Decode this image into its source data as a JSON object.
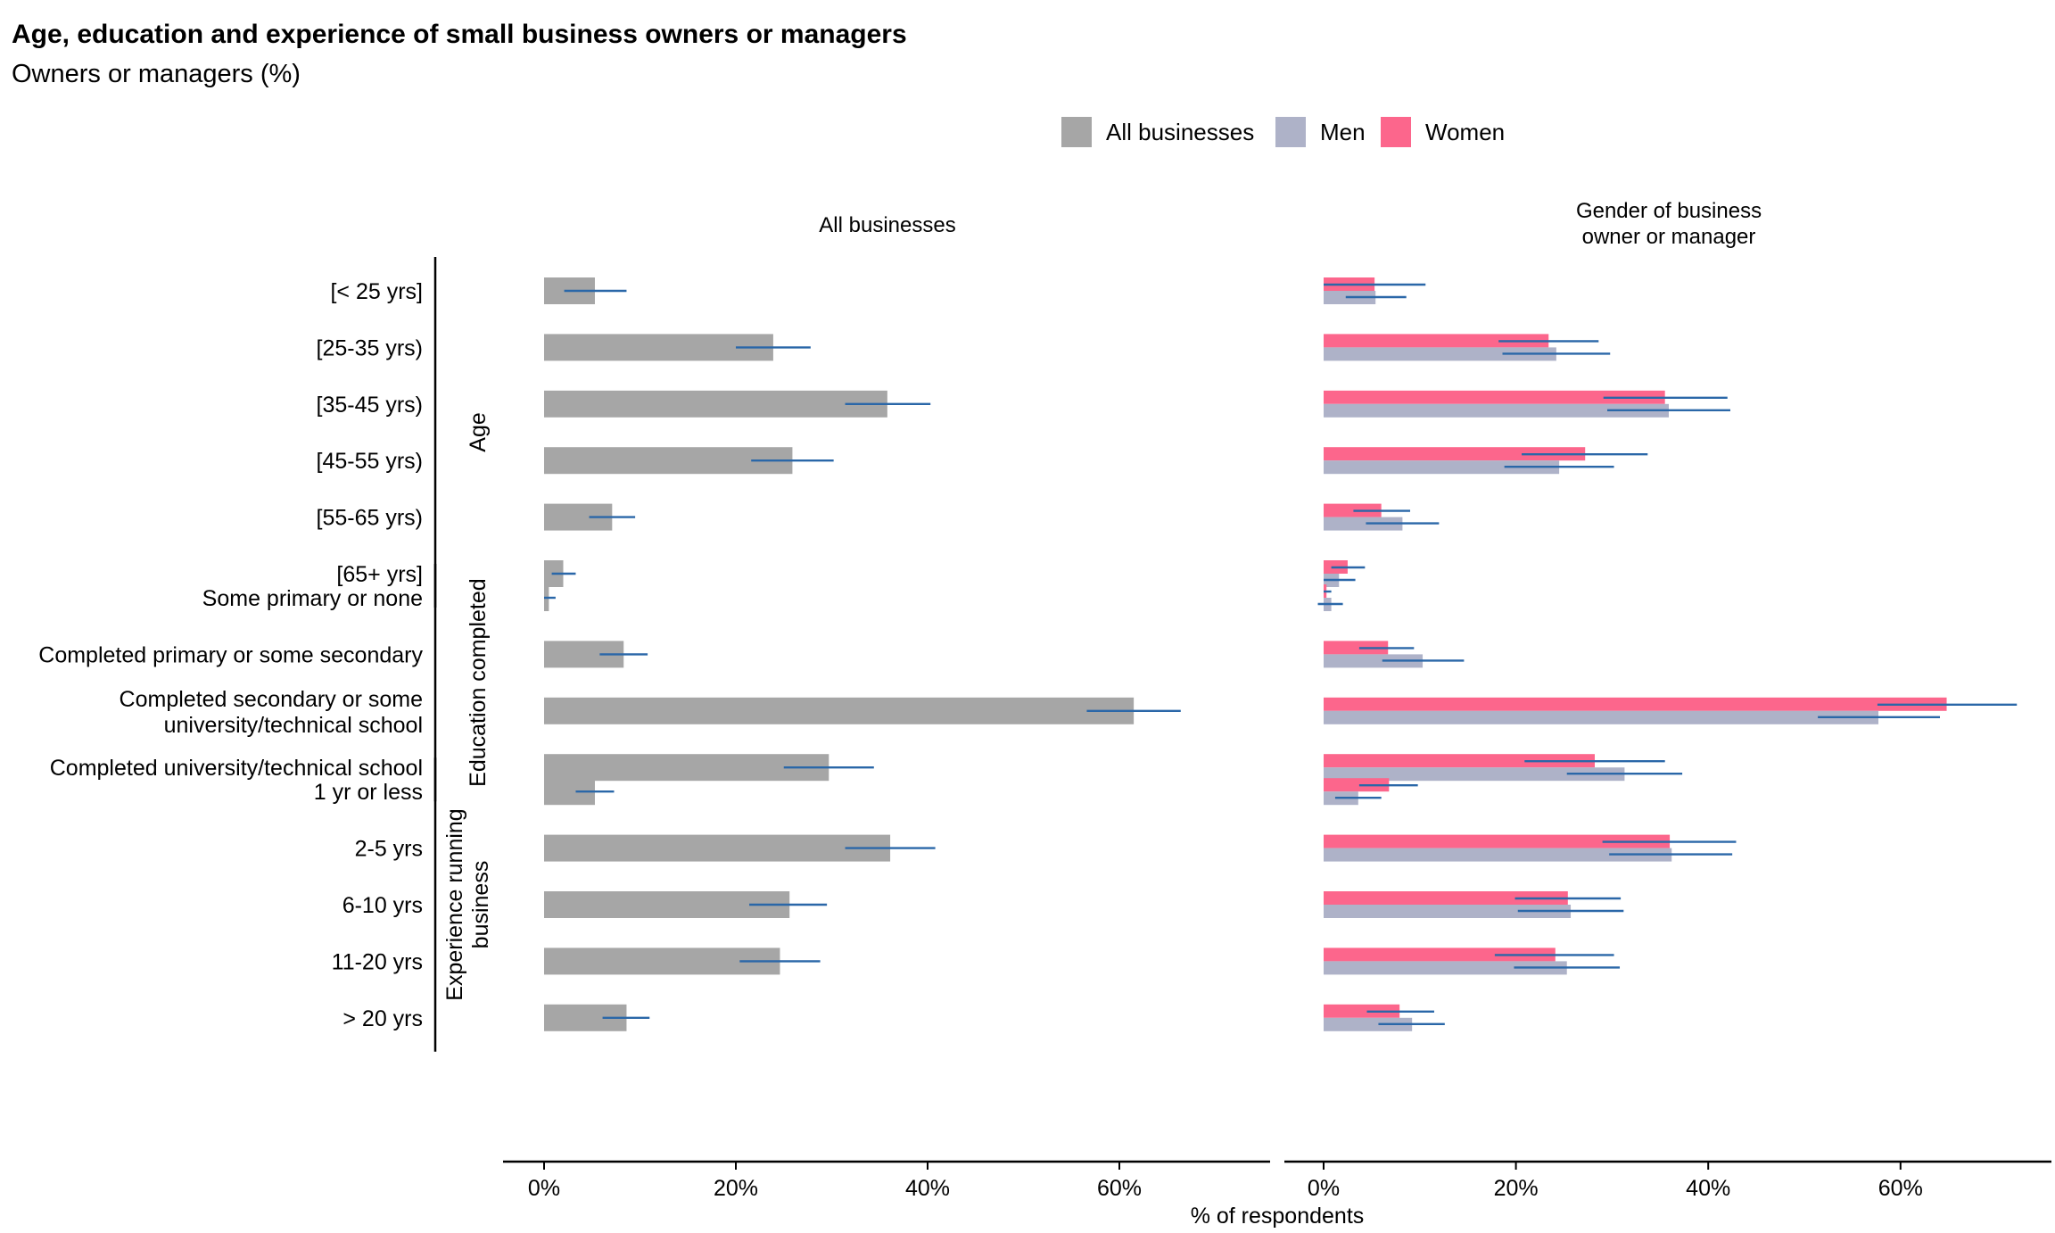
{
  "title": "Age, education and experience of small business owners or managers",
  "subtitle": "Owners or managers (%)",
  "legend": [
    {
      "label": "All businesses",
      "color": "#a6a6a6"
    },
    {
      "label": "Men",
      "color": "#aeb2c8"
    },
    {
      "label": "Women",
      "color": "#fc668c"
    }
  ],
  "colors": {
    "all": "#a6a6a6",
    "men": "#aeb2c8",
    "women": "#fc668c",
    "error_bar": "#2a67a8"
  },
  "chart_data": {
    "type": "bar",
    "orientation": "horizontal",
    "facets": [
      "All businesses",
      "Gender of business\nowner or manager"
    ],
    "xlabel": "% of respondents",
    "xlim": [
      -4,
      75
    ],
    "xticks": [
      0,
      20,
      40,
      60
    ],
    "xtick_labels": [
      "0%",
      "20%",
      "40%",
      "60%"
    ],
    "grid": false,
    "legend_position": "top",
    "groups": [
      {
        "name": "Age",
        "rows": [
          {
            "label": "[< 25 yrs]",
            "all": 5.3,
            "all_ci": [
              2.1,
              8.6
            ],
            "men": 5.4,
            "men_ci": [
              2.3,
              8.6
            ],
            "women": 5.3,
            "women_ci": [
              0.0,
              10.6
            ]
          },
          {
            "label": "[25-35 yrs)",
            "all": 23.9,
            "all_ci": [
              20.0,
              27.8
            ],
            "men": 24.2,
            "men_ci": [
              18.6,
              29.8
            ],
            "women": 23.4,
            "women_ci": [
              18.2,
              28.6
            ]
          },
          {
            "label": "[35-45 yrs)",
            "all": 35.8,
            "all_ci": [
              31.4,
              40.3
            ],
            "men": 35.9,
            "men_ci": [
              29.5,
              42.3
            ],
            "women": 35.5,
            "women_ci": [
              29.1,
              42.0
            ]
          },
          {
            "label": "[45-55 yrs)",
            "all": 25.9,
            "all_ci": [
              21.6,
              30.2
            ],
            "men": 24.5,
            "men_ci": [
              18.8,
              30.2
            ],
            "women": 27.2,
            "women_ci": [
              20.6,
              33.7
            ]
          },
          {
            "label": "[55-65 yrs)",
            "all": 7.1,
            "all_ci": [
              4.7,
              9.5
            ],
            "men": 8.2,
            "men_ci": [
              4.4,
              12.0
            ],
            "women": 6.0,
            "women_ci": [
              3.1,
              9.0
            ]
          },
          {
            "label": "[65+ yrs]",
            "all": 2.0,
            "all_ci": [
              0.8,
              3.3
            ],
            "men": 1.6,
            "men_ci": [
              0.0,
              3.3
            ],
            "women": 2.5,
            "women_ci": [
              0.8,
              4.3
            ]
          }
        ]
      },
      {
        "name": "Education completed",
        "rows": [
          {
            "label": "Some primary or none",
            "all": 0.5,
            "all_ci": [
              0.0,
              1.2
            ],
            "men": 0.8,
            "men_ci": [
              -0.6,
              2.0
            ],
            "women": 0.3,
            "women_ci": [
              0.0,
              0.8
            ]
          },
          {
            "label": "Completed primary or some secondary",
            "all": 8.3,
            "all_ci": [
              5.8,
              10.8
            ],
            "men": 10.3,
            "men_ci": [
              6.1,
              14.6
            ],
            "women": 6.7,
            "women_ci": [
              3.7,
              9.4
            ]
          },
          {
            "label": "Completed secondary or some\nuniversity/technical school",
            "all": 61.5,
            "all_ci": [
              56.6,
              66.4
            ],
            "men": 57.7,
            "men_ci": [
              51.4,
              64.1
            ],
            "women": 64.8,
            "women_ci": [
              57.6,
              72.1
            ]
          },
          {
            "label": "Completed university/technical school",
            "all": 29.7,
            "all_ci": [
              25.0,
              34.4
            ],
            "men": 31.3,
            "men_ci": [
              25.3,
              37.3
            ],
            "women": 28.2,
            "women_ci": [
              20.9,
              35.5
            ]
          }
        ]
      },
      {
        "name": "Experience running\nbusiness",
        "rows": [
          {
            "label": "1 yr or less",
            "all": 5.3,
            "all_ci": [
              3.3,
              7.3
            ],
            "men": 3.6,
            "men_ci": [
              1.2,
              6.0
            ],
            "women": 6.8,
            "women_ci": [
              3.7,
              9.8
            ]
          },
          {
            "label": "2-5 yrs",
            "all": 36.1,
            "all_ci": [
              31.4,
              40.8
            ],
            "men": 36.2,
            "men_ci": [
              29.7,
              42.5
            ],
            "women": 36.0,
            "women_ci": [
              29.0,
              42.9
            ]
          },
          {
            "label": "6-10 yrs",
            "all": 25.6,
            "all_ci": [
              21.4,
              29.5
            ],
            "men": 25.7,
            "men_ci": [
              20.2,
              31.2
            ],
            "women": 25.4,
            "women_ci": [
              19.9,
              30.9
            ]
          },
          {
            "label": "11-20 yrs",
            "all": 24.6,
            "all_ci": [
              20.4,
              28.8
            ],
            "men": 25.3,
            "men_ci": [
              19.8,
              30.8
            ],
            "women": 24.1,
            "women_ci": [
              17.8,
              30.2
            ]
          },
          {
            "label": "> 20 yrs",
            "all": 8.6,
            "all_ci": [
              6.1,
              11.0
            ],
            "men": 9.2,
            "men_ci": [
              5.7,
              12.6
            ],
            "women": 7.9,
            "women_ci": [
              4.5,
              11.5
            ]
          }
        ]
      }
    ]
  }
}
